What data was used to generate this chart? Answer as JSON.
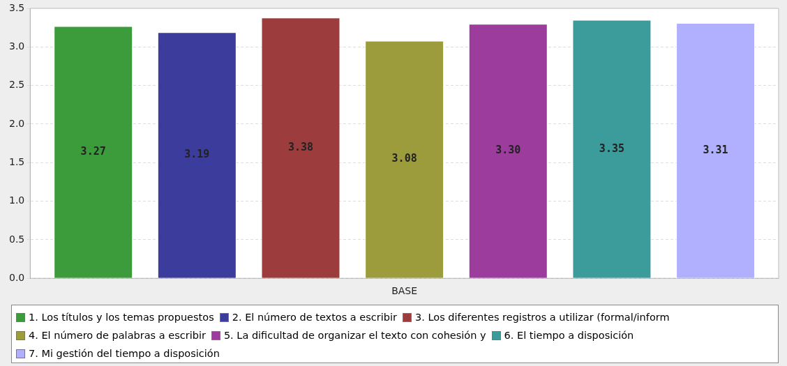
{
  "chart_data": {
    "type": "bar",
    "categories": [
      "BASE"
    ],
    "series": [
      {
        "name": "1. Los títulos y los temas propuestos",
        "color": "#3c9c3c",
        "values": [
          3.27
        ],
        "value_labels": [
          "3.27"
        ]
      },
      {
        "name": "2. El número de textos a escribir",
        "color": "#3c3c9c",
        "values": [
          3.19
        ],
        "value_labels": [
          "3.19"
        ]
      },
      {
        "name": "3. Los diferentes registros a utilizar (formal/inform",
        "color": "#9c3c3c",
        "values": [
          3.38
        ],
        "value_labels": [
          "3.38"
        ]
      },
      {
        "name": "4. El número de palabras a escribir",
        "color": "#9c9c3c",
        "values": [
          3.08
        ],
        "value_labels": [
          "3.08"
        ]
      },
      {
        "name": "5. La dificultad de organizar el texto con cohesión y",
        "color": "#9c3c9c",
        "values": [
          3.3
        ],
        "value_labels": [
          "3.30"
        ]
      },
      {
        "name": "6. El tiempo a disposición",
        "color": "#3c9c9c",
        "values": [
          3.35
        ],
        "value_labels": [
          "3.35"
        ]
      },
      {
        "name": "7. Mi gestión del tiempo a disposición",
        "color": "#b0b0ff",
        "values": [
          3.31
        ],
        "value_labels": [
          "3.31"
        ]
      }
    ],
    "ylim": [
      0,
      3.5
    ],
    "yticks": [
      {
        "value": 0,
        "label": "0.0"
      },
      {
        "value": 0.5,
        "label": "0.5"
      },
      {
        "value": 1,
        "label": "1.0"
      },
      {
        "value": 1.5,
        "label": "1.5"
      },
      {
        "value": 2,
        "label": "2.0"
      },
      {
        "value": 2.5,
        "label": "2.5"
      },
      {
        "value": 3,
        "label": "3.0"
      },
      {
        "value": 3.5,
        "label": "3.5"
      }
    ],
    "grid": "y",
    "legend": "bottom"
  }
}
